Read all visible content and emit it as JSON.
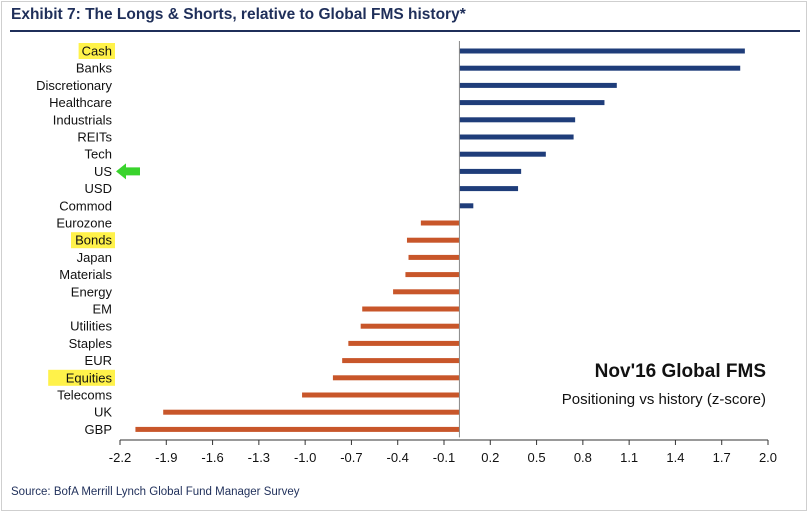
{
  "title": "Exhibit 7: The Longs & Shorts, relative to Global FMS history*",
  "source": "Source: BofA Merrill Lynch Global Fund Manager Survey",
  "colors": {
    "positive": "#1f3d7a",
    "negative": "#c8562a",
    "highlight": "#fff24a",
    "arrow": "#39d32c"
  },
  "chart_data": {
    "type": "bar",
    "orientation": "horizontal",
    "categories": [
      "Cash",
      "Banks",
      "Discretionary",
      "Healthcare",
      "Industrials",
      "REITs",
      "Tech",
      "US",
      "USD",
      "Commod",
      "Eurozone",
      "Bonds",
      "Japan",
      "Materials",
      "Energy",
      "EM",
      "Utilities",
      "Staples",
      "EUR",
      "Equities",
      "Telecoms",
      "UK",
      "GBP"
    ],
    "values": [
      1.85,
      1.82,
      1.02,
      0.94,
      0.75,
      0.74,
      0.56,
      0.4,
      0.38,
      0.09,
      -0.25,
      -0.34,
      -0.33,
      -0.35,
      -0.43,
      -0.63,
      -0.64,
      -0.72,
      -0.76,
      -0.82,
      -1.02,
      -1.92,
      -2.1
    ],
    "highlighted": [
      "Cash",
      "Bonds",
      "Equities"
    ],
    "arrow_at": "US",
    "xlim": [
      -2.2,
      2.0
    ],
    "xticks": [
      "-2.2",
      "-1.9",
      "-1.6",
      "-1.3",
      "-1.0",
      "-0.7",
      "-0.4",
      "-0.1",
      "0.2",
      "0.5",
      "0.8",
      "1.1",
      "1.4",
      "1.7",
      "2.0"
    ],
    "annotation_title": "Nov'16 Global FMS",
    "annotation_subtitle": "Positioning vs history (z-score)",
    "grid": false
  }
}
